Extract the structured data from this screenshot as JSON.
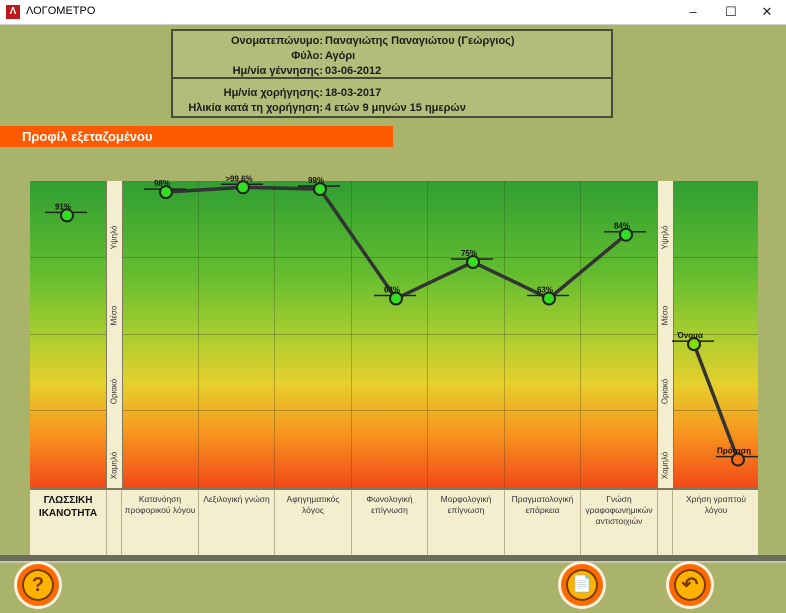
{
  "window": {
    "title": "ΛΟΓΟΜΕΤΡΟ",
    "app_icon": "Λ",
    "minimize_icon": "–",
    "maximize_icon": "☐",
    "close_icon": "✕"
  },
  "info": {
    "name_label": "Ονοματεπώνυμο:",
    "name_value": "Παναγιώτης Παναγιώτου (Γεώργιος)",
    "gender_label": "Φύλο:",
    "gender_value": "Αγόρι",
    "birth_label": "Ημ/νία γέννησης:",
    "birth_value": "03-06-2012",
    "admin_label": "Ημ/νία χορήγησης:",
    "admin_value": "18-03-2017",
    "age_label": "Ηλικία κατά τη χορήγηση:",
    "age_value": "4 ετών 9 μηνών 15 ημερών"
  },
  "profile": {
    "header": "Προφίλ εξεταζομένου"
  },
  "levels": [
    "Υψηλό",
    "Μέσο",
    "Οριακό",
    "Χαμηλό"
  ],
  "columns": {
    "first": "ΓΛΩΣΣΙΚΗ ΙΚΑΝΟΤΗΤΑ",
    "c1": "Κατανόηση προφορικού λόγου",
    "c2": "Λεξιλογική γνώση",
    "c3": "Αφηγηματικός λόγος",
    "c4": "Φωνολογική επίγνωση",
    "c5": "Μορφολογική επίγνωση",
    "c6": "Πραγματολογική επάρκεια",
    "c7": "Γνώση γραφοφωνημικών αντιστοιχιών",
    "c8": "Χρήση γραπτού λόγου"
  },
  "chart_data": {
    "type": "line",
    "overall": {
      "label": "91%",
      "value": 91,
      "color": "#33dd22"
    },
    "series": [
      {
        "categories": [
          "Κατανόηση προφορικού λόγου",
          "Λεξιλογική γνώση",
          "Αφηγηματικός λόγος",
          "Φωνολογική επίγνωση",
          "Μορφολογική επίγνωση",
          "Πραγματολογική επάρκεια",
          "Γνώση γραφοφωνημικών αντιστοιχιών"
        ],
        "values": [
          98,
          99.6,
          99,
          63,
          75,
          63,
          84
        ],
        "labels": [
          "98%",
          ">99.6%",
          "99%",
          "63%",
          "75%",
          "63%",
          "84%"
        ],
        "point_color": "#33dd22"
      },
      {
        "categories": [
          "Όνομα",
          "Πρόταση"
        ],
        "values": [
          48,
          10
        ],
        "labels": [
          "Όνομα",
          "Πρόταση"
        ],
        "point_colors": [
          "#7fe000",
          "#f56a10"
        ]
      }
    ]
  },
  "buttons": {
    "help_icon": "?",
    "report_icon": "📄",
    "back_icon": "↶"
  }
}
